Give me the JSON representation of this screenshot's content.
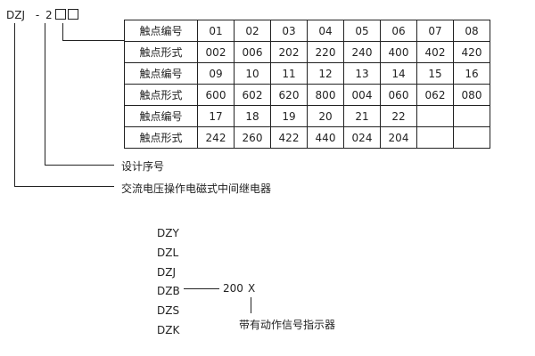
{
  "code": {
    "prefix": "DZJ",
    "dash": "-",
    "digit": "2"
  },
  "table": {
    "rows": [
      {
        "label": "触点编号",
        "cells": [
          "01",
          "02",
          "03",
          "04",
          "05",
          "06",
          "07",
          "08"
        ]
      },
      {
        "label": "触点形式",
        "cells": [
          "002",
          "006",
          "202",
          "220",
          "240",
          "400",
          "402",
          "420"
        ]
      },
      {
        "label": "触点编号",
        "cells": [
          "09",
          "10",
          "11",
          "12",
          "13",
          "14",
          "15",
          "16"
        ]
      },
      {
        "label": "触点形式",
        "cells": [
          "600",
          "602",
          "620",
          "800",
          "004",
          "060",
          "062",
          "080"
        ]
      },
      {
        "label": "触点编号",
        "cells": [
          "17",
          "18",
          "19",
          "20",
          "21",
          "22",
          "",
          ""
        ]
      },
      {
        "label": "触点形式",
        "cells": [
          "242",
          "260",
          "422",
          "440",
          "024",
          "204",
          "",
          ""
        ]
      }
    ]
  },
  "labels": {
    "design_no": "设计序号",
    "relay_type": "交流电压操作电磁式中间继电器"
  },
  "series": {
    "models": [
      "DZY",
      "DZL",
      "DZJ",
      "DZB",
      "DZS",
      "DZK"
    ],
    "suffix_num": "200",
    "suffix_x": "X",
    "indicator_label": "带有动作信号指示器"
  }
}
